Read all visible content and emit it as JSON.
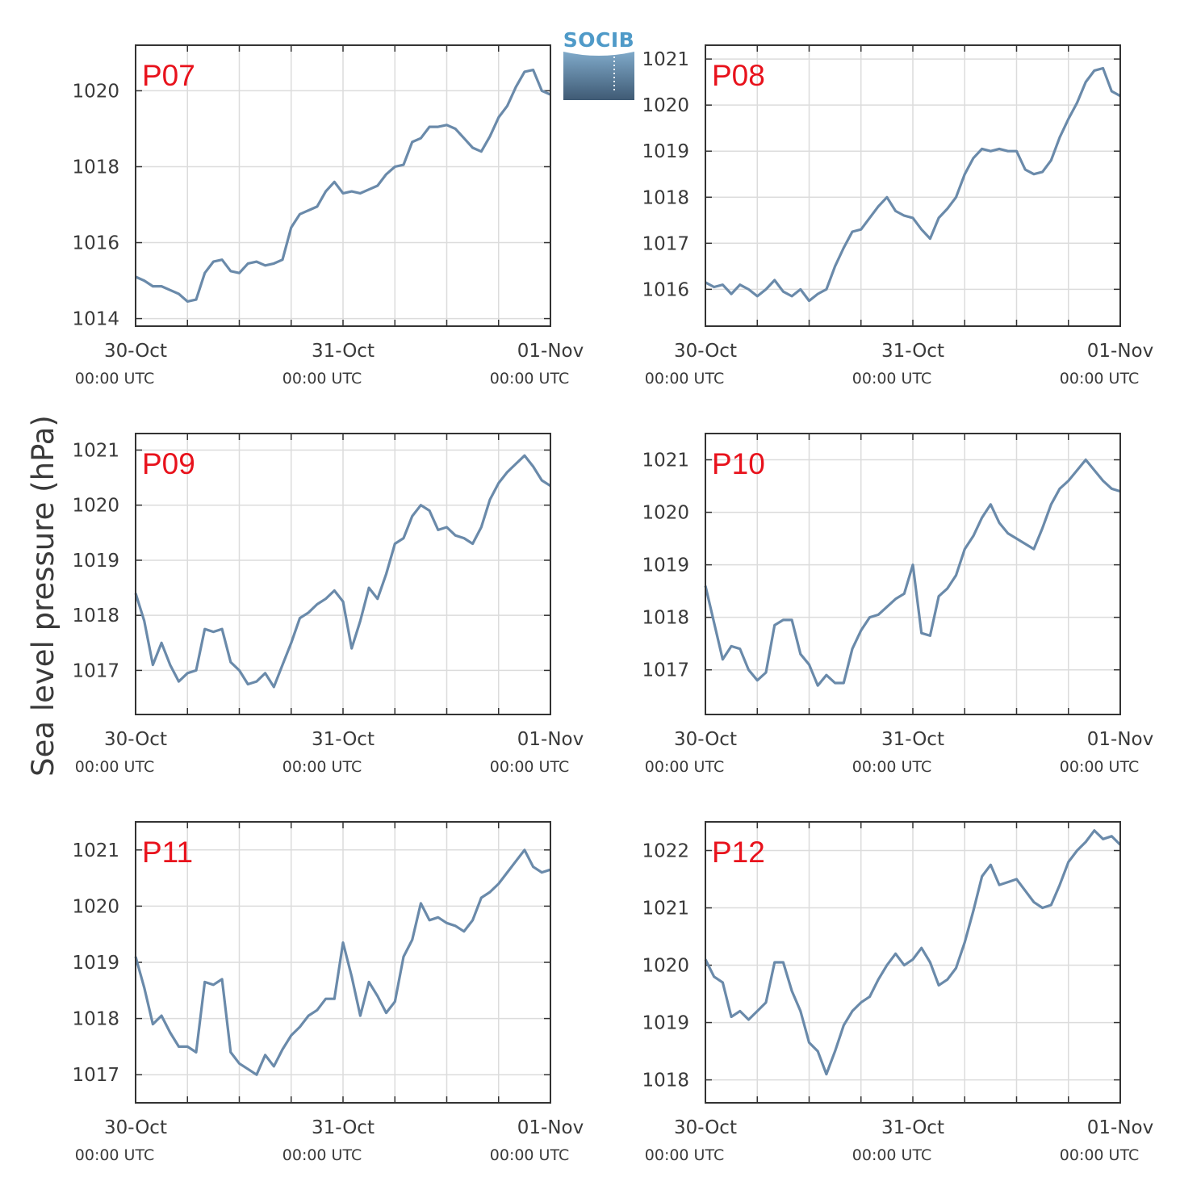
{
  "figure": {
    "ylabel": "Sea level pressure (hPa)",
    "logo_text": "SOCIB",
    "line_color": "#6a8aaa",
    "label_color": "#e8121c",
    "x_ticks": [
      {
        "value": 0,
        "date": "30-Oct",
        "time": "00:00 UTC"
      },
      {
        "value": 24,
        "date": "31-Oct",
        "time": "00:00 UTC"
      },
      {
        "value": 48,
        "date": "01-Nov",
        "time": "00:00 UTC"
      }
    ]
  },
  "chart_data": [
    {
      "type": "line",
      "station": "P07",
      "xunit": "hours since 30-Oct 00:00 UTC",
      "xlim": [
        0,
        48
      ],
      "ylim": [
        1013.8,
        1021.2
      ],
      "yticks": [
        1014,
        1016,
        1018,
        1020
      ],
      "grid": true,
      "x": [
        0,
        1,
        2,
        3,
        4,
        5,
        6,
        7,
        8,
        9,
        10,
        11,
        12,
        13,
        14,
        15,
        16,
        17,
        18,
        19,
        20,
        21,
        22,
        23,
        24,
        25,
        26,
        27,
        28,
        29,
        30,
        31,
        32,
        33,
        34,
        35,
        36,
        37,
        38,
        39,
        40,
        41,
        42,
        43,
        44,
        45,
        46,
        47,
        48
      ],
      "y": [
        1015.1,
        1015.0,
        1014.85,
        1014.85,
        1014.75,
        1014.65,
        1014.45,
        1014.5,
        1015.2,
        1015.5,
        1015.55,
        1015.25,
        1015.2,
        1015.45,
        1015.5,
        1015.4,
        1015.45,
        1015.55,
        1016.4,
        1016.75,
        1016.85,
        1016.95,
        1017.35,
        1017.6,
        1017.3,
        1017.35,
        1017.3,
        1017.4,
        1017.5,
        1017.8,
        1018.0,
        1018.05,
        1018.65,
        1018.75,
        1019.05,
        1019.05,
        1019.1,
        1019.0,
        1018.75,
        1018.5,
        1018.4,
        1018.8,
        1019.3,
        1019.6,
        1020.1,
        1020.5,
        1020.55,
        1020.0,
        1019.9
      ]
    },
    {
      "type": "line",
      "station": "P08",
      "xunit": "hours since 30-Oct 00:00 UTC",
      "xlim": [
        0,
        48
      ],
      "ylim": [
        1015.2,
        1021.3
      ],
      "yticks": [
        1016,
        1017,
        1018,
        1019,
        1020,
        1021
      ],
      "grid": true,
      "x": [
        0,
        1,
        2,
        3,
        4,
        5,
        6,
        7,
        8,
        9,
        10,
        11,
        12,
        13,
        14,
        15,
        16,
        17,
        18,
        19,
        20,
        21,
        22,
        23,
        24,
        25,
        26,
        27,
        28,
        29,
        30,
        31,
        32,
        33,
        34,
        35,
        36,
        37,
        38,
        39,
        40,
        41,
        42,
        43,
        44,
        45,
        46,
        47,
        48
      ],
      "y": [
        1016.15,
        1016.05,
        1016.1,
        1015.9,
        1016.1,
        1016.0,
        1015.85,
        1016.0,
        1016.2,
        1015.95,
        1015.85,
        1016.0,
        1015.75,
        1015.9,
        1016.0,
        1016.5,
        1016.9,
        1017.25,
        1017.3,
        1017.55,
        1017.8,
        1018.0,
        1017.7,
        1017.6,
        1017.55,
        1017.3,
        1017.1,
        1017.55,
        1017.75,
        1018.0,
        1018.5,
        1018.85,
        1019.05,
        1019.0,
        1019.05,
        1019.0,
        1019.0,
        1018.6,
        1018.5,
        1018.55,
        1018.8,
        1019.3,
        1019.7,
        1020.05,
        1020.5,
        1020.75,
        1020.8,
        1020.3,
        1020.2
      ]
    },
    {
      "type": "line",
      "station": "P09",
      "xunit": "hours since 30-Oct 00:00 UTC",
      "xlim": [
        0,
        48
      ],
      "ylim": [
        1016.2,
        1021.3
      ],
      "yticks": [
        1017,
        1018,
        1019,
        1020,
        1021
      ],
      "grid": true,
      "x": [
        0,
        1,
        2,
        3,
        4,
        5,
        6,
        7,
        8,
        9,
        10,
        11,
        12,
        13,
        14,
        15,
        16,
        17,
        18,
        19,
        20,
        21,
        22,
        23,
        24,
        25,
        26,
        27,
        28,
        29,
        30,
        31,
        32,
        33,
        34,
        35,
        36,
        37,
        38,
        39,
        40,
        41,
        42,
        43,
        44,
        45,
        46,
        47,
        48
      ],
      "y": [
        1018.4,
        1017.9,
        1017.1,
        1017.5,
        1017.1,
        1016.8,
        1016.95,
        1017.0,
        1017.75,
        1017.7,
        1017.75,
        1017.15,
        1017.0,
        1016.75,
        1016.8,
        1016.95,
        1016.7,
        1017.1,
        1017.5,
        1017.95,
        1018.05,
        1018.2,
        1018.3,
        1018.45,
        1018.25,
        1017.4,
        1017.9,
        1018.5,
        1018.3,
        1018.75,
        1019.3,
        1019.4,
        1019.8,
        1020.0,
        1019.9,
        1019.55,
        1019.6,
        1019.45,
        1019.4,
        1019.3,
        1019.6,
        1020.1,
        1020.4,
        1020.6,
        1020.75,
        1020.9,
        1020.7,
        1020.45,
        1020.35
      ]
    },
    {
      "type": "line",
      "station": "P10",
      "xunit": "hours since 30-Oct 00:00 UTC",
      "xlim": [
        0,
        48
      ],
      "ylim": [
        1016.15,
        1021.5
      ],
      "yticks": [
        1017,
        1018,
        1019,
        1020,
        1021
      ],
      "grid": true,
      "x": [
        0,
        1,
        2,
        3,
        4,
        5,
        6,
        7,
        8,
        9,
        10,
        11,
        12,
        13,
        14,
        15,
        16,
        17,
        18,
        19,
        20,
        21,
        22,
        23,
        24,
        25,
        26,
        27,
        28,
        29,
        30,
        31,
        32,
        33,
        34,
        35,
        36,
        37,
        38,
        39,
        40,
        41,
        42,
        43,
        44,
        45,
        46,
        47,
        48
      ],
      "y": [
        1018.6,
        1017.9,
        1017.2,
        1017.45,
        1017.4,
        1017.0,
        1016.8,
        1016.95,
        1017.85,
        1017.95,
        1017.95,
        1017.3,
        1017.1,
        1016.7,
        1016.9,
        1016.75,
        1016.75,
        1017.4,
        1017.75,
        1018.0,
        1018.05,
        1018.2,
        1018.35,
        1018.45,
        1019.0,
        1017.7,
        1017.65,
        1018.4,
        1018.55,
        1018.8,
        1019.3,
        1019.55,
        1019.9,
        1020.15,
        1019.8,
        1019.6,
        1019.5,
        1019.4,
        1019.3,
        1019.7,
        1020.15,
        1020.45,
        1020.6,
        1020.8,
        1021.0,
        1020.8,
        1020.6,
        1020.45,
        1020.4
      ]
    },
    {
      "type": "line",
      "station": "P11",
      "xunit": "hours since 30-Oct 00:00 UTC",
      "xlim": [
        0,
        48
      ],
      "ylim": [
        1016.5,
        1021.5
      ],
      "yticks": [
        1017,
        1018,
        1019,
        1020,
        1021
      ],
      "grid": true,
      "x": [
        0,
        1,
        2,
        3,
        4,
        5,
        6,
        7,
        8,
        9,
        10,
        11,
        12,
        13,
        14,
        15,
        16,
        17,
        18,
        19,
        20,
        21,
        22,
        23,
        24,
        25,
        26,
        27,
        28,
        29,
        30,
        31,
        32,
        33,
        34,
        35,
        36,
        37,
        38,
        39,
        40,
        41,
        42,
        43,
        44,
        45,
        46,
        47,
        48
      ],
      "y": [
        1019.1,
        1018.55,
        1017.9,
        1018.05,
        1017.75,
        1017.5,
        1017.5,
        1017.4,
        1018.65,
        1018.6,
        1018.7,
        1017.4,
        1017.2,
        1017.1,
        1017.0,
        1017.35,
        1017.15,
        1017.45,
        1017.7,
        1017.85,
        1018.05,
        1018.15,
        1018.35,
        1018.35,
        1019.35,
        1018.75,
        1018.05,
        1018.65,
        1018.4,
        1018.1,
        1018.3,
        1019.1,
        1019.4,
        1020.05,
        1019.75,
        1019.8,
        1019.7,
        1019.65,
        1019.55,
        1019.75,
        1020.15,
        1020.25,
        1020.4,
        1020.6,
        1020.8,
        1021.0,
        1020.7,
        1020.6,
        1020.65
      ]
    },
    {
      "type": "line",
      "station": "P12",
      "xunit": "hours since 30-Oct 00:00 UTC",
      "xlim": [
        0,
        48
      ],
      "ylim": [
        1017.6,
        1022.5
      ],
      "yticks": [
        1018,
        1019,
        1020,
        1021,
        1022
      ],
      "grid": true,
      "x": [
        0,
        1,
        2,
        3,
        4,
        5,
        6,
        7,
        8,
        9,
        10,
        11,
        12,
        13,
        14,
        15,
        16,
        17,
        18,
        19,
        20,
        21,
        22,
        23,
        24,
        25,
        26,
        27,
        28,
        29,
        30,
        31,
        32,
        33,
        34,
        35,
        36,
        37,
        38,
        39,
        40,
        41,
        42,
        43,
        44,
        45,
        46,
        47,
        48
      ],
      "y": [
        1020.1,
        1019.8,
        1019.7,
        1019.1,
        1019.2,
        1019.05,
        1019.2,
        1019.35,
        1020.05,
        1020.05,
        1019.55,
        1019.2,
        1018.65,
        1018.5,
        1018.1,
        1018.5,
        1018.95,
        1019.2,
        1019.35,
        1019.45,
        1019.75,
        1020.0,
        1020.2,
        1020.0,
        1020.1,
        1020.3,
        1020.05,
        1019.65,
        1019.75,
        1019.95,
        1020.4,
        1020.95,
        1021.55,
        1021.75,
        1021.4,
        1021.45,
        1021.5,
        1021.3,
        1021.1,
        1021.0,
        1021.05,
        1021.4,
        1021.8,
        1022.0,
        1022.15,
        1022.35,
        1022.2,
        1022.25,
        1022.1
      ]
    }
  ]
}
